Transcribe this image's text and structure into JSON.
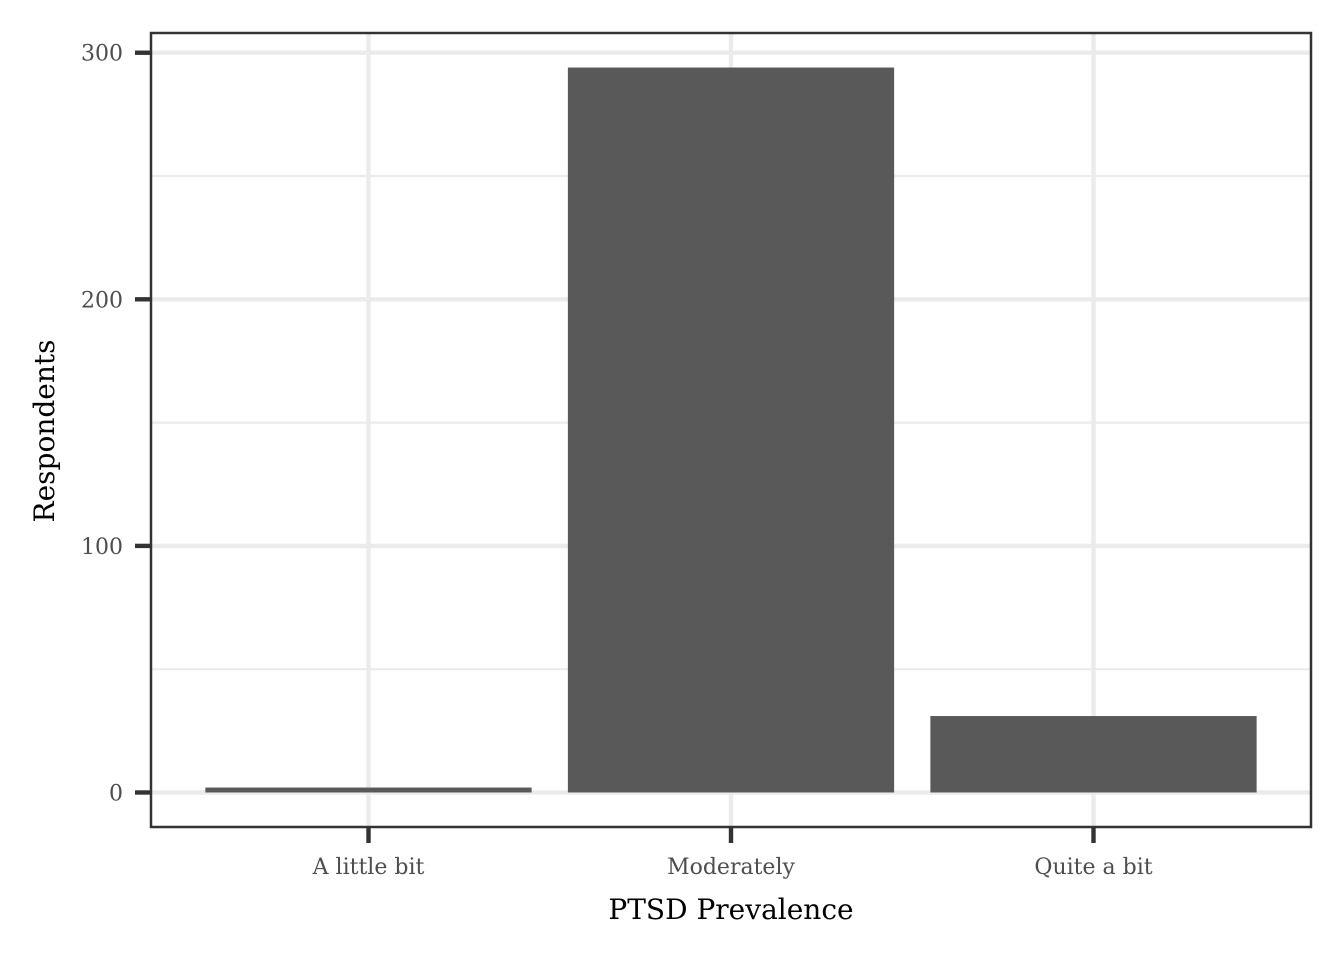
{
  "chart_data": {
    "type": "bar",
    "title": "",
    "xlabel": "PTSD Prevalence",
    "ylabel": "Respondents",
    "categories": [
      "A little bit",
      "Moderately",
      "Quite a bit"
    ],
    "values": [
      2,
      294,
      31
    ],
    "ylim": [
      -14,
      308
    ],
    "yticks": [
      0,
      100,
      200,
      300
    ],
    "yticks_minor": [
      50,
      150,
      250
    ],
    "grid": true,
    "legend": "none",
    "colors": {
      "bar": "#595959",
      "grid": "#ebebeb",
      "panel_border": "#333333",
      "tick_label": "#4d4d4d",
      "axis_title": "#000000"
    }
  }
}
